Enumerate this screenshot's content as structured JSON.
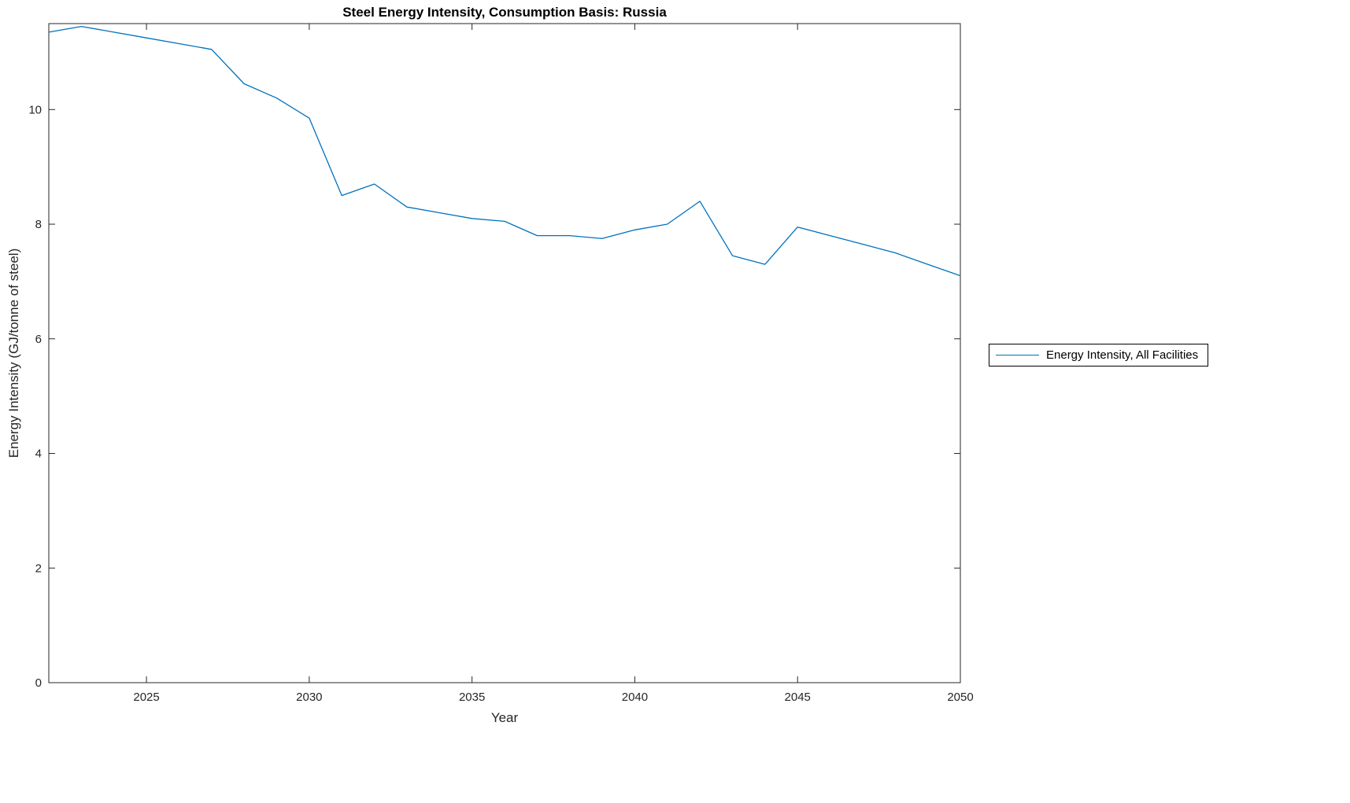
{
  "chart_data": {
    "type": "line",
    "title": "Steel Energy Intensity, Consumption Basis: Russia",
    "xlabel": "Year",
    "ylabel": "Energy Intensity (GJ/tonne of steel)",
    "xlim": [
      2022,
      2050
    ],
    "ylim": [
      0,
      11.5
    ],
    "xticks": [
      2025,
      2030,
      2035,
      2040,
      2045,
      2050
    ],
    "yticks": [
      0,
      2,
      4,
      6,
      8,
      10
    ],
    "grid": false,
    "axis_color": "#262626",
    "line_color": "#0072BD",
    "legend": {
      "position": "right-outside",
      "entries": [
        "Energy Intensity, All Facilities"
      ]
    },
    "series": [
      {
        "name": "Energy Intensity, All Facilities",
        "x": [
          2022,
          2023,
          2024,
          2025,
          2026,
          2027,
          2028,
          2029,
          2030,
          2031,
          2032,
          2033,
          2034,
          2035,
          2036,
          2037,
          2038,
          2039,
          2040,
          2041,
          2042,
          2043,
          2044,
          2045,
          2046,
          2047,
          2048,
          2049,
          2050
        ],
        "y": [
          11.35,
          11.45,
          11.35,
          11.25,
          11.15,
          11.05,
          10.45,
          10.2,
          9.85,
          8.5,
          8.7,
          8.3,
          8.2,
          8.1,
          8.05,
          7.8,
          7.8,
          7.75,
          7.9,
          8.0,
          8.4,
          7.45,
          7.3,
          7.95,
          7.8,
          7.65,
          7.5,
          7.3,
          7.1
        ]
      }
    ]
  }
}
